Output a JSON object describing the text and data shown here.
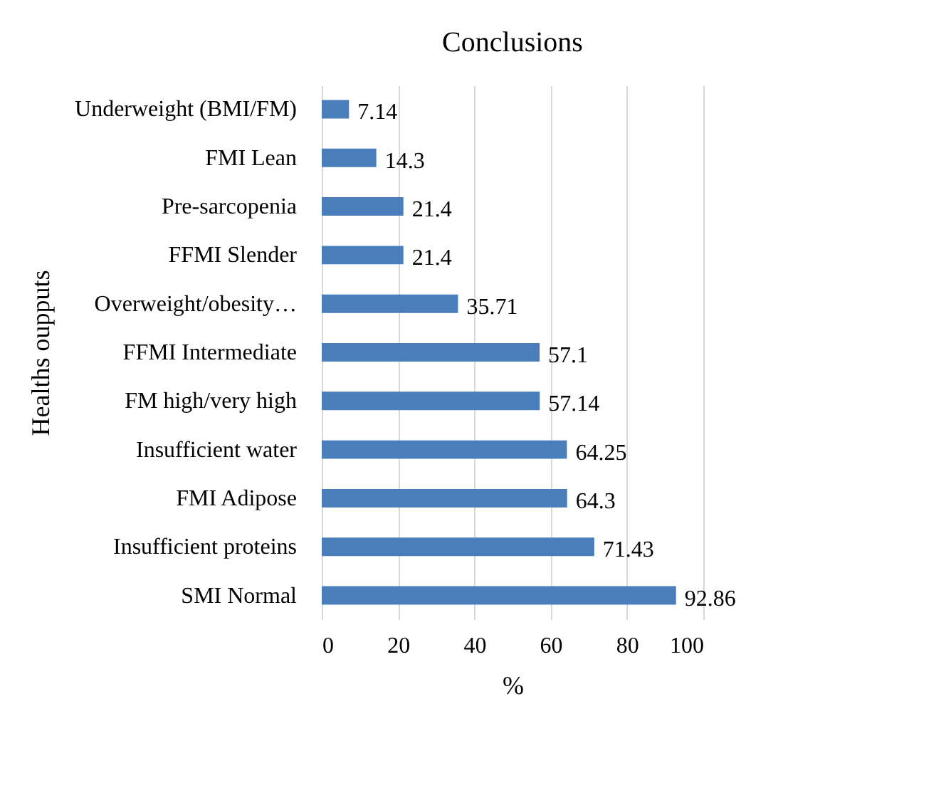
{
  "chart_data": {
    "type": "bar",
    "orientation": "horizontal",
    "title": "Conclusions",
    "xlabel": "%",
    "ylabel": "Healths oupputs",
    "categories": [
      "Underweight  (BMI/FM)",
      "FMI Lean",
      "Pre-sarcopenia",
      "FFMI Slender",
      "Overweight/obesity…",
      "FFMI Intermediate",
      "FM high/very  high",
      "Insufficient  water",
      "FMI Adipose",
      "Insufficient  proteins",
      "SMI Normal"
    ],
    "values": [
      7.14,
      14.3,
      21.4,
      21.4,
      35.71,
      57.1,
      57.14,
      64.25,
      64.3,
      71.43,
      92.86
    ],
    "color": "#4a7ebb",
    "xlim": [
      0,
      100
    ],
    "xticks": [
      0,
      20,
      40,
      60,
      80,
      100
    ],
    "grid": "x",
    "data_labels": true
  }
}
